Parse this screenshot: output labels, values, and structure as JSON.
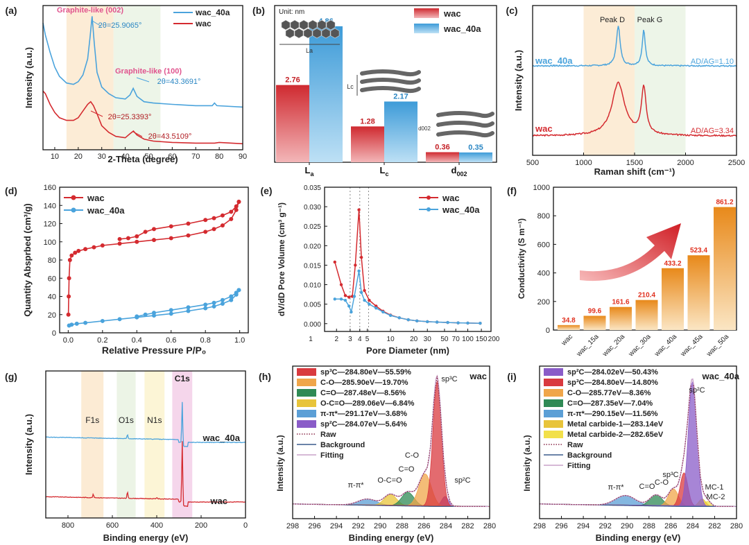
{
  "colors": {
    "red": "#d42a2f",
    "blue": "#4aa3dc",
    "pink": "#e0548e",
    "orange": "#e88a1a"
  },
  "chart_data": [
    {
      "panel": "(a)",
      "type": "line",
      "xlabel": "2-Theta (degree)",
      "ylabel": "Intensity (a.u.)",
      "xlim": [
        5,
        90
      ],
      "xticks": [
        10,
        20,
        30,
        40,
        50,
        60,
        70,
        80,
        90
      ],
      "legend": "top-right",
      "series": [
        {
          "name": "wac_40a",
          "color": "#4aa3dc",
          "points": [
            [
              5,
              0.95
            ],
            [
              6,
              0.86
            ],
            [
              8,
              0.73
            ],
            [
              10,
              0.62
            ],
            [
              12,
              0.55
            ],
            [
              15,
              0.5
            ],
            [
              18,
              0.49
            ],
            [
              20,
              0.51
            ],
            [
              22,
              0.56
            ],
            [
              24,
              0.68
            ],
            [
              25,
              0.84
            ],
            [
              25.9,
              1.0
            ],
            [
              26.8,
              0.8
            ],
            [
              28,
              0.58
            ],
            [
              30,
              0.47
            ],
            [
              33,
              0.42
            ],
            [
              36,
              0.39
            ],
            [
              40,
              0.38
            ],
            [
              42,
              0.41
            ],
            [
              43.4,
              0.46
            ],
            [
              45,
              0.4
            ],
            [
              48,
              0.36
            ],
            [
              52,
              0.35
            ],
            [
              60,
              0.34
            ],
            [
              70,
              0.33
            ],
            [
              77,
              0.33
            ],
            [
              78,
              0.35
            ],
            [
              79,
              0.33
            ],
            [
              90,
              0.32
            ]
          ]
        },
        {
          "name": "wac",
          "color": "#d42a2f",
          "points": [
            [
              5,
              0.44
            ],
            [
              6,
              0.42
            ],
            [
              8,
              0.34
            ],
            [
              10,
              0.28
            ],
            [
              12,
              0.24
            ],
            [
              15,
              0.22
            ],
            [
              18,
              0.22
            ],
            [
              20,
              0.24
            ],
            [
              22,
              0.29
            ],
            [
              24,
              0.34
            ],
            [
              25.3,
              0.36
            ],
            [
              26.5,
              0.33
            ],
            [
              28,
              0.27
            ],
            [
              30,
              0.18
            ],
            [
              33,
              0.13
            ],
            [
              36,
              0.1
            ],
            [
              40,
              0.09
            ],
            [
              42,
              0.12
            ],
            [
              43.5,
              0.14
            ],
            [
              45,
              0.11
            ],
            [
              48,
              0.08
            ],
            [
              52,
              0.065
            ],
            [
              60,
              0.055
            ],
            [
              70,
              0.05
            ],
            [
              78,
              0.05
            ],
            [
              80,
              0.055
            ],
            [
              90,
              0.045
            ]
          ]
        }
      ],
      "annotations": [
        "Graphite-like (002)",
        "2θ=25.9065°",
        "Graphite-like (100)",
        "2θ=43.3691°",
        "2θ=25.3393°",
        "2θ=43.5109°"
      ]
    },
    {
      "panel": "(b)",
      "type": "bar",
      "unit_label": "Unit: nm",
      "categories": [
        "La",
        "Lc",
        "d002"
      ],
      "series": [
        {
          "name": "wac",
          "color": "#d42a2f",
          "values": [
            2.76,
            1.28,
            0.36
          ]
        },
        {
          "name": "wac_40a",
          "color": "#4aa3dc",
          "values": [
            4.86,
            2.17,
            0.35
          ]
        }
      ],
      "ylim": [
        0,
        5.6
      ],
      "legend": "top-right",
      "inset_labels": [
        "La",
        "Lc",
        "d002"
      ]
    },
    {
      "panel": "(c)",
      "type": "line",
      "xlabel": "Raman shift (cm⁻¹)",
      "ylabel": "Intensity (a.u.)",
      "xlim": [
        500,
        2500
      ],
      "xticks": [
        500,
        1000,
        1500,
        2000,
        2500
      ],
      "peak_labels": [
        "Peak D",
        "Peak G"
      ],
      "series": [
        {
          "name": "wac_40a",
          "ratio": "AD/AG=1.10",
          "color": "#4aa3dc"
        },
        {
          "name": "wac",
          "ratio": "AD/AG=3.34",
          "color": "#d42a2f"
        }
      ]
    },
    {
      "panel": "(d)",
      "type": "line",
      "xlabel": "Relative Pressure P/P₀",
      "ylabel": "Quantity Absprbed (cm³/g)",
      "xlim": [
        -0.05,
        1.05
      ],
      "ylim": [
        0,
        160
      ],
      "xticks": [
        0.0,
        0.2,
        0.4,
        0.6,
        0.8,
        1.0
      ],
      "yticks": [
        0,
        20,
        40,
        60,
        80,
        100,
        120,
        140,
        160
      ],
      "legend": "top-left",
      "series": [
        {
          "name": "wac",
          "color": "#d42a2f",
          "adsorption": [
            [
              0.001,
              20
            ],
            [
              0.003,
              40
            ],
            [
              0.005,
              60
            ],
            [
              0.01,
              80
            ],
            [
              0.02,
              85
            ],
            [
              0.04,
              88
            ],
            [
              0.06,
              90
            ],
            [
              0.1,
              92
            ],
            [
              0.15,
              94
            ],
            [
              0.2,
              96
            ],
            [
              0.3,
              98
            ],
            [
              0.4,
              100
            ],
            [
              0.5,
              102
            ],
            [
              0.6,
              104
            ],
            [
              0.7,
              107
            ],
            [
              0.8,
              111
            ],
            [
              0.85,
              114
            ],
            [
              0.9,
              118
            ],
            [
              0.95,
              125
            ],
            [
              0.98,
              135
            ],
            [
              0.995,
              144
            ]
          ],
          "desorption": [
            [
              0.995,
              144
            ],
            [
              0.98,
              139
            ],
            [
              0.95,
              133
            ],
            [
              0.9,
              129
            ],
            [
              0.85,
              126
            ],
            [
              0.8,
              124
            ],
            [
              0.7,
              120
            ],
            [
              0.6,
              117
            ],
            [
              0.5,
              114
            ],
            [
              0.45,
              111
            ],
            [
              0.4,
              106
            ],
            [
              0.35,
              104
            ],
            [
              0.3,
              103
            ]
          ]
        },
        {
          "name": "wac_40a",
          "color": "#4aa3dc",
          "adsorption": [
            [
              0.005,
              8
            ],
            [
              0.02,
              9
            ],
            [
              0.05,
              10
            ],
            [
              0.1,
              11
            ],
            [
              0.2,
              13
            ],
            [
              0.3,
              15
            ],
            [
              0.4,
              17
            ],
            [
              0.5,
              19
            ],
            [
              0.6,
              21
            ],
            [
              0.7,
              24
            ],
            [
              0.8,
              27
            ],
            [
              0.85,
              29
            ],
            [
              0.9,
              32
            ],
            [
              0.95,
              36
            ],
            [
              0.98,
              42
            ],
            [
              0.995,
              47
            ]
          ],
          "desorption": [
            [
              0.995,
              47
            ],
            [
              0.98,
              44
            ],
            [
              0.95,
              40
            ],
            [
              0.9,
              36
            ],
            [
              0.85,
              33
            ],
            [
              0.8,
              31
            ],
            [
              0.7,
              28
            ],
            [
              0.6,
              25
            ],
            [
              0.5,
              22
            ],
            [
              0.45,
              20
            ],
            [
              0.4,
              18
            ]
          ]
        }
      ]
    },
    {
      "panel": "(e)",
      "type": "line",
      "xlabel": "Pore Diameter (nm)",
      "ylabel": "dV/dD Pore Volume (cm³ g⁻¹)",
      "xscale": "log",
      "xlim": [
        1,
        200
      ],
      "ylim": [
        -0.002,
        0.035
      ],
      "xticks": [
        1,
        2,
        3,
        4,
        5,
        10,
        20,
        30,
        50,
        70,
        100,
        150,
        200
      ],
      "yticks": [
        0.0,
        0.005,
        0.01,
        0.015,
        0.02,
        0.025,
        0.03,
        0.035
      ],
      "reference_lines_nm": [
        3,
        4,
        5.2
      ],
      "legend": "top-right",
      "series": [
        {
          "name": "wac",
          "color": "#d42a2f",
          "points": [
            [
              1.9,
              0.0158
            ],
            [
              2.3,
              0.01
            ],
            [
              2.6,
              0.0072
            ],
            [
              2.9,
              0.0068
            ],
            [
              3.2,
              0.007
            ],
            [
              3.5,
              0.015
            ],
            [
              3.9,
              0.0292
            ],
            [
              4.2,
              0.017
            ],
            [
              4.6,
              0.0085
            ],
            [
              5.3,
              0.006
            ],
            [
              6.5,
              0.0045
            ],
            [
              8,
              0.0032
            ],
            [
              10,
              0.0022
            ],
            [
              13,
              0.0015
            ],
            [
              17,
              0.001
            ],
            [
              22,
              0.0007
            ],
            [
              30,
              0.0005
            ],
            [
              40,
              0.0004
            ],
            [
              55,
              0.0003
            ],
            [
              75,
              0.0002
            ],
            [
              100,
              0.00015
            ],
            [
              145,
              0.0001
            ]
          ]
        },
        {
          "name": "wac_40a",
          "color": "#4aa3dc",
          "points": [
            [
              1.9,
              0.0063
            ],
            [
              2.3,
              0.0063
            ],
            [
              2.6,
              0.006
            ],
            [
              2.9,
              0.0045
            ],
            [
              3.1,
              0.003
            ],
            [
              3.4,
              0.007
            ],
            [
              3.9,
              0.0135
            ],
            [
              4.2,
              0.008
            ],
            [
              4.6,
              0.006
            ],
            [
              5.3,
              0.005
            ],
            [
              6.5,
              0.004
            ],
            [
              8,
              0.003
            ],
            [
              10,
              0.0021
            ],
            [
              13,
              0.0015
            ],
            [
              17,
              0.001
            ],
            [
              22,
              0.0007
            ],
            [
              30,
              0.0005
            ],
            [
              40,
              0.0004
            ],
            [
              55,
              0.0003
            ],
            [
              75,
              0.0002
            ],
            [
              100,
              0.00015
            ],
            [
              145,
              0.0001
            ]
          ]
        }
      ]
    },
    {
      "panel": "(f)",
      "type": "bar",
      "ylabel": "Conductivity (S m⁻¹)",
      "ylim": [
        0,
        1000
      ],
      "yticks": [
        0,
        200,
        400,
        600,
        800,
        1000
      ],
      "categories": [
        "wac",
        "wac_15a",
        "wac_20a",
        "wac_30a",
        "wac_40a",
        "wac_45a",
        "wac_50a"
      ],
      "values": [
        34.8,
        99.6,
        161.6,
        210.4,
        433.2,
        523.4,
        861.2
      ],
      "value_labels": [
        "34.8",
        "99.6",
        "161.6",
        "210.4",
        "433.2",
        "523.4",
        "861.2"
      ]
    },
    {
      "panel": "(g)",
      "type": "line",
      "xlabel": "Binding energy (eV)",
      "ylabel": "Intensity (a.u.)",
      "xlim": [
        900,
        0
      ],
      "xticks": [
        800,
        600,
        400,
        200,
        0
      ],
      "region_labels": [
        "F1s",
        "O1s",
        "N1s",
        "C1s"
      ],
      "series": [
        {
          "name": "wac_40a",
          "color": "#4aa3dc"
        },
        {
          "name": "wac",
          "color": "#d42a2f"
        }
      ]
    },
    {
      "panel": "(h)",
      "type": "area",
      "title": "wac",
      "xlabel": "Binding energy (eV)",
      "ylabel": "Intensity (a.u.)",
      "xlim": [
        298,
        280
      ],
      "xticks": [
        298,
        296,
        294,
        292,
        290,
        288,
        286,
        284,
        282,
        280
      ],
      "legend": "top-left",
      "components": [
        {
          "label": "sp³C—284.80eV—55.59%",
          "center": 284.8,
          "percent": 55.59,
          "color": "#d93a3f"
        },
        {
          "label": "C-O—285.90eV—19.70%",
          "center": 285.9,
          "percent": 19.7,
          "color": "#f0a64a"
        },
        {
          "label": "C=O—287.48eV—8.56%",
          "center": 287.48,
          "percent": 8.56,
          "color": "#2f8a55"
        },
        {
          "label": "O-C=O—289.06eV—6.84%",
          "center": 289.06,
          "percent": 6.84,
          "color": "#e8c43a"
        },
        {
          "label": "π-π*—291.17eV—3.68%",
          "center": 291.17,
          "percent": 3.68,
          "color": "#5b9fd6"
        },
        {
          "label": "sp²C—284.07eV—5.64%",
          "center": 284.07,
          "percent": 5.64,
          "color": "#8a5cc8"
        }
      ],
      "line_legend": [
        "Raw",
        "Background",
        "Fitting"
      ],
      "peak_annotations": [
        "sp³C",
        "C-O",
        "C=O",
        "π-π*",
        "O-C=O",
        "sp²C"
      ]
    },
    {
      "panel": "(i)",
      "type": "area",
      "title": "wac_40a",
      "xlabel": "Binding energy (eV)",
      "ylabel": "Intensity (a.u.)",
      "xlim": [
        298,
        280
      ],
      "xticks": [
        298,
        296,
        294,
        292,
        290,
        288,
        286,
        284,
        282,
        280
      ],
      "legend": "top-left",
      "components": [
        {
          "label": "sp²C—284.02eV—50.43%",
          "center": 284.02,
          "percent": 50.43,
          "color": "#8a5cc8"
        },
        {
          "label": "sp³C—284.80eV—14.80%",
          "center": 284.8,
          "percent": 14.8,
          "color": "#d93a3f"
        },
        {
          "label": "C-O—285.77eV—8.36%",
          "center": 285.77,
          "percent": 8.36,
          "color": "#f0a64a"
        },
        {
          "label": "C=O—287.35eV—7.04%",
          "center": 287.35,
          "percent": 7.04,
          "color": "#2f8a55"
        },
        {
          "label": "π-π*—290.15eV—11.56%",
          "center": 290.15,
          "percent": 11.56,
          "color": "#5b9fd6"
        },
        {
          "label": "Metal carbide-1—283.14eV",
          "center": 283.14,
          "color": "#e8c43a"
        },
        {
          "label": "Metal carbide-2—282.65eV",
          "center": 282.65,
          "color": "#f2e04a"
        }
      ],
      "line_legend": [
        "Raw",
        "Background",
        "Fitting"
      ],
      "peak_annotations": [
        "sp²C",
        "sp³C",
        "C-O",
        "C=O",
        "π-π*",
        "MC-1",
        "MC-2"
      ]
    }
  ]
}
